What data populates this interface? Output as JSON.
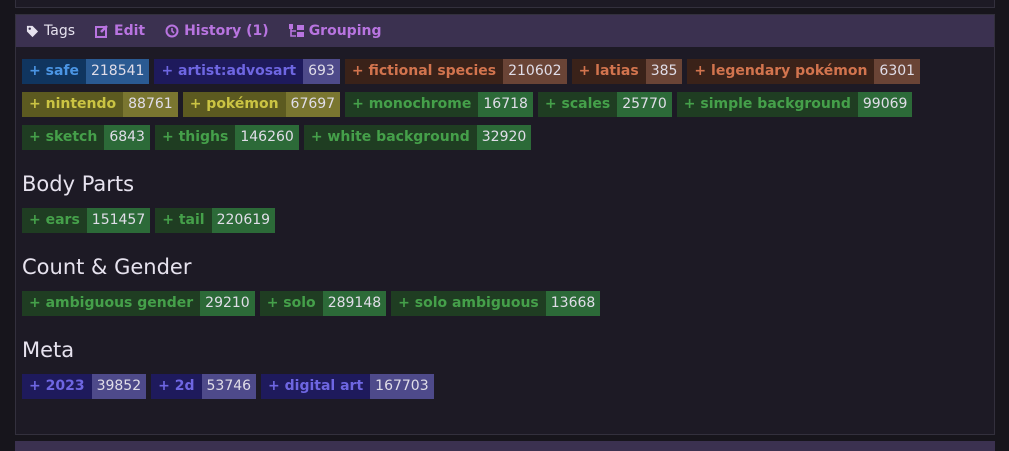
{
  "header": {
    "tags_label": "Tags",
    "edit_label": "Edit",
    "history_label": "History (1)",
    "grouping_label": "Grouping"
  },
  "colors": {
    "header_bg": "#3b3150",
    "link": "#b874e0",
    "safe": "#4b95e4",
    "artist": "#6e66e2",
    "species": "#d2744e",
    "origin": "#cbc443",
    "general": "#45a04a"
  },
  "tags": [
    {
      "name": "+ safe",
      "count": "218541",
      "type": "rating"
    },
    {
      "name": "+ artist:advosart",
      "count": "693",
      "type": "artist"
    },
    {
      "name": "+ fictional species",
      "count": "210602",
      "type": "species"
    },
    {
      "name": "+ latias",
      "count": "385",
      "type": "species"
    },
    {
      "name": "+ legendary pokémon",
      "count": "6301",
      "type": "species"
    },
    {
      "name": "+ nintendo",
      "count": "88761",
      "type": "origin"
    },
    {
      "name": "+ pokémon",
      "count": "67697",
      "type": "origin"
    },
    {
      "name": "+ monochrome",
      "count": "16718",
      "type": "general"
    },
    {
      "name": "+ scales",
      "count": "25770",
      "type": "general"
    },
    {
      "name": "+ simple background",
      "count": "99069",
      "type": "general"
    },
    {
      "name": "+ sketch",
      "count": "6843",
      "type": "general"
    },
    {
      "name": "+ thighs",
      "count": "146260",
      "type": "general"
    },
    {
      "name": "+ white background",
      "count": "32920",
      "type": "general"
    }
  ],
  "groups": [
    {
      "title": "Body Parts",
      "tags": [
        {
          "name": "+ ears",
          "count": "151457",
          "type": "general"
        },
        {
          "name": "+ tail",
          "count": "220619",
          "type": "general"
        }
      ]
    },
    {
      "title": "Count & Gender",
      "tags": [
        {
          "name": "+ ambiguous gender",
          "count": "29210",
          "type": "general"
        },
        {
          "name": "+ solo",
          "count": "289148",
          "type": "general"
        },
        {
          "name": "+ solo ambiguous",
          "count": "13668",
          "type": "general"
        }
      ]
    },
    {
      "title": "Meta",
      "tags": [
        {
          "name": "+ 2023",
          "count": "39852",
          "type": "meta"
        },
        {
          "name": "+ 2d",
          "count": "53746",
          "type": "meta"
        },
        {
          "name": "+ digital art",
          "count": "167703",
          "type": "meta"
        }
      ]
    }
  ]
}
